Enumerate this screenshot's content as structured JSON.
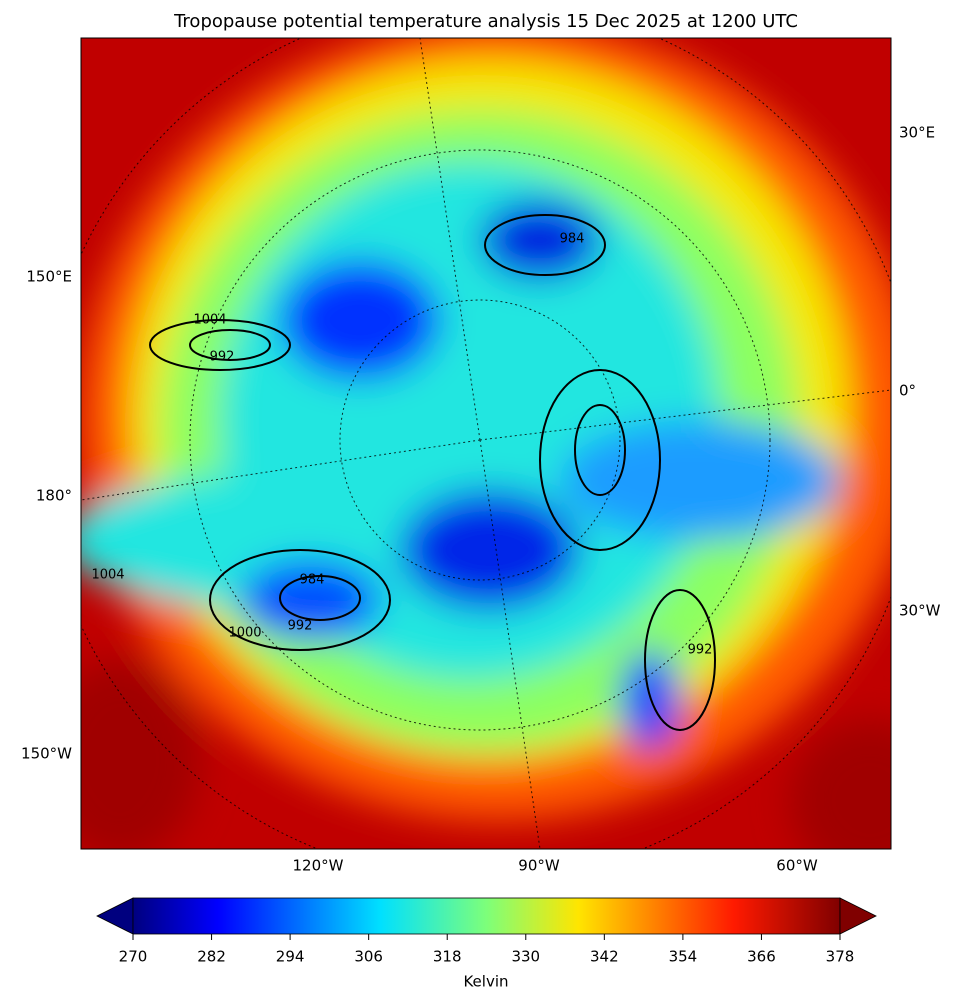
{
  "title": "Tropopause potential temperature analysis 15 Dec 2025 at 1200 UTC",
  "map": {
    "left_labels": [
      "150°E",
      "180°",
      "150°W"
    ],
    "right_labels": [
      "30°E",
      "0°",
      "30°W"
    ],
    "bottom_labels": [
      "120°W",
      "90°W",
      "60°W"
    ],
    "contour_labels": [
      "992",
      "1000",
      "984",
      "992",
      "1004",
      "984",
      "992",
      "1004"
    ]
  },
  "colorbar": {
    "lim": [
      270,
      378
    ],
    "ticks": [
      270,
      282,
      294,
      306,
      318,
      330,
      342,
      354,
      366,
      378
    ],
    "label": "Kelvin"
  }
}
